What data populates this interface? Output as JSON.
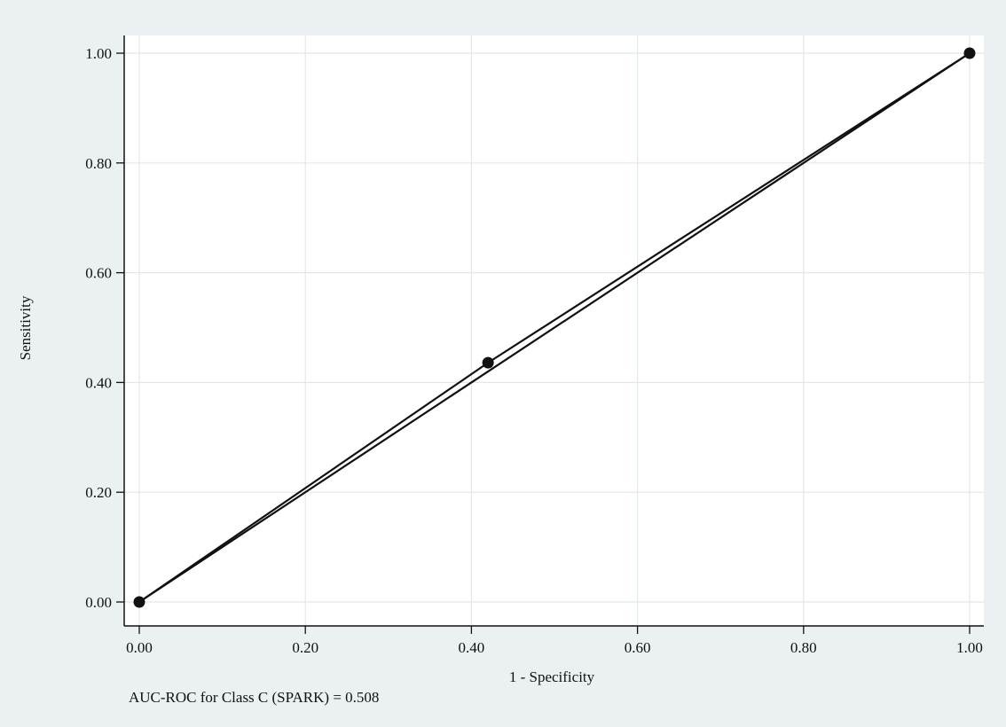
{
  "chart_data": {
    "type": "line",
    "xlabel": "1 - Specificity",
    "ylabel": "Sensitivity",
    "xlim": [
      0,
      1
    ],
    "ylim": [
      0,
      1
    ],
    "xticks": [
      0,
      0.2,
      0.4,
      0.6,
      0.8,
      1.0
    ],
    "yticks": [
      0,
      0.2,
      0.4,
      0.6,
      0.8,
      1.0
    ],
    "x_tick_labels": [
      "0.00",
      "0.20",
      "0.40",
      "0.60",
      "0.80",
      "1.00"
    ],
    "y_tick_labels": [
      "0.00",
      "0.20",
      "0.40",
      "0.60",
      "0.80",
      "1.00"
    ],
    "grid": true,
    "series": [
      {
        "x": [
          0.0,
          0.42,
          1.0
        ],
        "y": [
          0.0,
          0.436,
          1.0
        ],
        "markers": true
      },
      {
        "x": [
          0.0,
          1.0
        ],
        "y": [
          0.0,
          1.0
        ],
        "markers": false
      }
    ],
    "note": "AUC-ROC for Class C (SPARK) = 0.508"
  },
  "colors": {
    "outer_background": "#ebf0f3",
    "plot_background": "#ffffff",
    "grid": "#e1e8ec",
    "line": "#111111"
  }
}
